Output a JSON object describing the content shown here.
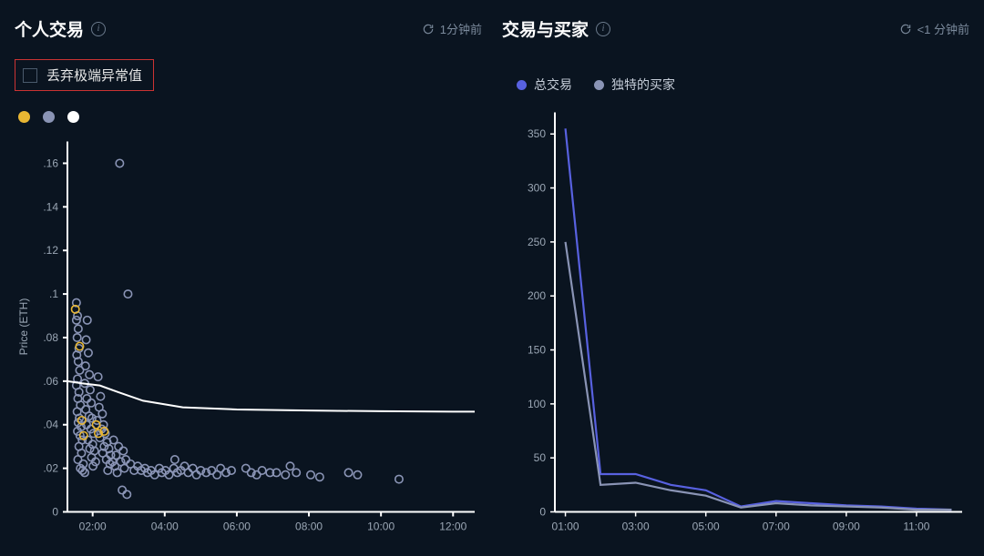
{
  "background_color": "#0a1420",
  "left_panel": {
    "title": "个人交易",
    "refresh_text": "1分钟前",
    "outlier_checkbox_label": "丢弃极端异常值",
    "outlier_box_border": "#cc3333",
    "legend_colors": [
      "#e8b633",
      "#8a94b5",
      "#ffffff"
    ],
    "chart": {
      "type": "scatter_with_trend",
      "y_label": "Price (ETH)",
      "x_ticks": [
        "02:00",
        "04:00",
        "06:00",
        "08:00",
        "10:00",
        "12:00"
      ],
      "y_ticks": [
        "0",
        ".02",
        ".04",
        ".06",
        ".08",
        ".1",
        ".12",
        ".14",
        ".16"
      ],
      "ylim": [
        0,
        0.17
      ],
      "xlim": [
        1.3,
        12.6
      ],
      "axis_color": "#ffffff",
      "grid_color": "#1e2a38",
      "label_color": "#9ba7b5",
      "label_fontsize": 12,
      "trend_color": "#ffffff",
      "trend_width": 2,
      "trend_points": [
        [
          1.3,
          0.06
        ],
        [
          1.7,
          0.059
        ],
        [
          2.2,
          0.058
        ],
        [
          2.7,
          0.055
        ],
        [
          3.4,
          0.051
        ],
        [
          4.5,
          0.048
        ],
        [
          6.0,
          0.047
        ],
        [
          8.0,
          0.0465
        ],
        [
          10.0,
          0.0462
        ],
        [
          12.0,
          0.046
        ],
        [
          12.6,
          0.046
        ]
      ],
      "point_radius": 4.2,
      "yellow_color": "#e8b633",
      "gray_color": "#8a94b5",
      "gray_points": [
        [
          1.55,
          0.096
        ],
        [
          1.58,
          0.09
        ],
        [
          1.55,
          0.088
        ],
        [
          1.6,
          0.084
        ],
        [
          1.57,
          0.08
        ],
        [
          1.62,
          0.075
        ],
        [
          1.56,
          0.072
        ],
        [
          1.6,
          0.069
        ],
        [
          1.64,
          0.065
        ],
        [
          1.58,
          0.061
        ],
        [
          1.55,
          0.058
        ],
        [
          1.62,
          0.055
        ],
        [
          1.59,
          0.052
        ],
        [
          1.66,
          0.049
        ],
        [
          1.57,
          0.046
        ],
        [
          1.63,
          0.043
        ],
        [
          1.6,
          0.041
        ],
        [
          1.68,
          0.039
        ],
        [
          1.58,
          0.037
        ],
        [
          1.65,
          0.035
        ],
        [
          1.71,
          0.033
        ],
        [
          1.62,
          0.03
        ],
        [
          1.69,
          0.027
        ],
        [
          1.59,
          0.024
        ],
        [
          1.74,
          0.022
        ],
        [
          1.66,
          0.02
        ],
        [
          1.72,
          0.019
        ],
        [
          1.78,
          0.018
        ],
        [
          1.85,
          0.088
        ],
        [
          1.82,
          0.079
        ],
        [
          1.88,
          0.073
        ],
        [
          1.8,
          0.067
        ],
        [
          1.91,
          0.063
        ],
        [
          1.78,
          0.059
        ],
        [
          1.93,
          0.056
        ],
        [
          1.84,
          0.052
        ],
        [
          1.96,
          0.05
        ],
        [
          1.81,
          0.047
        ],
        [
          1.9,
          0.044
        ],
        [
          1.98,
          0.043
        ],
        [
          1.83,
          0.04
        ],
        [
          1.95,
          0.038
        ],
        [
          2.02,
          0.036
        ],
        [
          1.87,
          0.033
        ],
        [
          2.0,
          0.031
        ],
        [
          1.92,
          0.029
        ],
        [
          2.05,
          0.028
        ],
        [
          1.97,
          0.025
        ],
        [
          2.08,
          0.023
        ],
        [
          2.01,
          0.021
        ],
        [
          2.15,
          0.062
        ],
        [
          2.22,
          0.053
        ],
        [
          2.18,
          0.048
        ],
        [
          2.27,
          0.045
        ],
        [
          2.12,
          0.042
        ],
        [
          2.3,
          0.04
        ],
        [
          2.25,
          0.038
        ],
        [
          2.35,
          0.036
        ],
        [
          2.2,
          0.034
        ],
        [
          2.4,
          0.032
        ],
        [
          2.32,
          0.03
        ],
        [
          2.45,
          0.029
        ],
        [
          2.28,
          0.027
        ],
        [
          2.5,
          0.026
        ],
        [
          2.38,
          0.024
        ],
        [
          2.55,
          0.023
        ],
        [
          2.48,
          0.022
        ],
        [
          2.62,
          0.021
        ],
        [
          2.42,
          0.019
        ],
        [
          2.68,
          0.018
        ],
        [
          2.75,
          0.16
        ],
        [
          2.98,
          0.1
        ],
        [
          2.82,
          0.01
        ],
        [
          2.95,
          0.008
        ],
        [
          2.58,
          0.033
        ],
        [
          2.72,
          0.03
        ],
        [
          2.85,
          0.028
        ],
        [
          2.65,
          0.026
        ],
        [
          2.92,
          0.024
        ],
        [
          2.78,
          0.023
        ],
        [
          3.05,
          0.022
        ],
        [
          2.88,
          0.02
        ],
        [
          3.15,
          0.019
        ],
        [
          3.25,
          0.021
        ],
        [
          3.35,
          0.019
        ],
        [
          3.45,
          0.02
        ],
        [
          3.52,
          0.018
        ],
        [
          3.62,
          0.019
        ],
        [
          3.72,
          0.017
        ],
        [
          3.85,
          0.02
        ],
        [
          3.92,
          0.018
        ],
        [
          4.02,
          0.019
        ],
        [
          4.12,
          0.017
        ],
        [
          4.25,
          0.02
        ],
        [
          4.28,
          0.024
        ],
        [
          4.35,
          0.018
        ],
        [
          4.45,
          0.019
        ],
        [
          4.55,
          0.021
        ],
        [
          4.65,
          0.018
        ],
        [
          4.78,
          0.02
        ],
        [
          4.88,
          0.017
        ],
        [
          5.0,
          0.019
        ],
        [
          5.15,
          0.018
        ],
        [
          5.3,
          0.019
        ],
        [
          5.45,
          0.017
        ],
        [
          5.55,
          0.02
        ],
        [
          5.7,
          0.018
        ],
        [
          5.85,
          0.019
        ],
        [
          6.25,
          0.02
        ],
        [
          6.4,
          0.018
        ],
        [
          6.55,
          0.017
        ],
        [
          6.7,
          0.019
        ],
        [
          6.92,
          0.018
        ],
        [
          7.1,
          0.018
        ],
        [
          7.35,
          0.017
        ],
        [
          7.48,
          0.021
        ],
        [
          7.65,
          0.018
        ],
        [
          8.05,
          0.017
        ],
        [
          8.3,
          0.016
        ],
        [
          9.1,
          0.018
        ],
        [
          9.35,
          0.017
        ],
        [
          10.5,
          0.015
        ]
      ],
      "yellow_points": [
        [
          1.52,
          0.093
        ],
        [
          1.64,
          0.076
        ],
        [
          1.7,
          0.042
        ],
        [
          1.75,
          0.035
        ],
        [
          2.1,
          0.04
        ],
        [
          2.16,
          0.036
        ],
        [
          2.32,
          0.037
        ]
      ]
    }
  },
  "right_panel": {
    "title": "交易与买家",
    "refresh_text": "<1 分钟前",
    "legend": [
      {
        "label": "总交易",
        "color": "#5861e0"
      },
      {
        "label": "独特的买家",
        "color": "#8a94b5"
      }
    ],
    "chart": {
      "type": "line",
      "x_ticks": [
        "01:00",
        "03:00",
        "05:00",
        "07:00",
        "09:00",
        "11:00"
      ],
      "y_ticks": [
        "0",
        "50",
        "100",
        "150",
        "200",
        "250",
        "300",
        "350"
      ],
      "ylim": [
        0,
        370
      ],
      "xlim": [
        0.7,
        12.3
      ],
      "axis_color": "#ffffff",
      "label_color": "#9ba7b5",
      "label_fontsize": 12,
      "series": [
        {
          "name": "总交易",
          "color": "#5861e0",
          "width": 2.5,
          "points": [
            [
              1.0,
              355
            ],
            [
              2.0,
              35
            ],
            [
              3.0,
              35
            ],
            [
              4.0,
              25
            ],
            [
              5.0,
              20
            ],
            [
              6.0,
              5
            ],
            [
              7.0,
              10
            ],
            [
              8.0,
              8
            ],
            [
              9.0,
              6
            ],
            [
              10.0,
              5
            ],
            [
              11.0,
              3
            ],
            [
              12.0,
              2
            ]
          ]
        },
        {
          "name": "独特的买家",
          "color": "#8a94b5",
          "width": 2,
          "points": [
            [
              1.0,
              250
            ],
            [
              2.0,
              25
            ],
            [
              3.0,
              27
            ],
            [
              4.0,
              20
            ],
            [
              5.0,
              15
            ],
            [
              6.0,
              4
            ],
            [
              7.0,
              8
            ],
            [
              8.0,
              6
            ],
            [
              9.0,
              5
            ],
            [
              10.0,
              4
            ],
            [
              11.0,
              2
            ],
            [
              12.0,
              2
            ]
          ]
        }
      ]
    }
  }
}
